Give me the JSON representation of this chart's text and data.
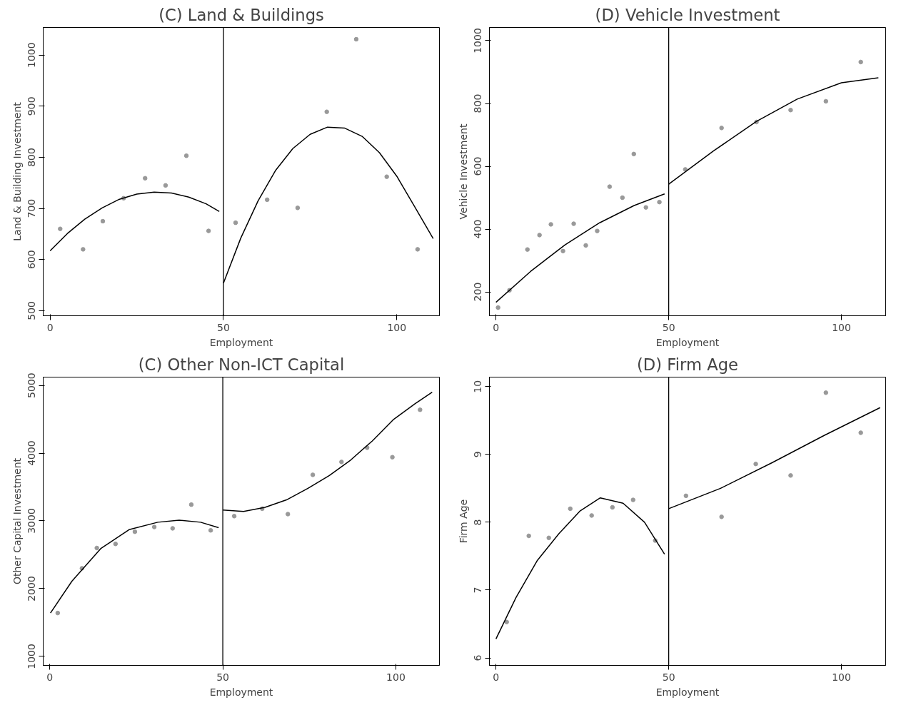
{
  "chart_data": [
    {
      "type": "scatter",
      "title": "(C) Land & Buildings",
      "xlabel": "Employment",
      "ylabel": "Land & Building Investment",
      "xlim": [
        -2,
        112.3
      ],
      "ylim": [
        490,
        1054
      ],
      "xticks": [
        0,
        50,
        100
      ],
      "yticks": [
        500,
        600,
        700,
        800,
        900,
        1000
      ],
      "grid": false,
      "ref_lines": [
        {
          "axis": "x",
          "value": 50,
          "color": "#000000"
        }
      ],
      "series": [
        {
          "marker": "circle",
          "color": "#999999",
          "x": [
            2.9,
            9.5,
            15.2,
            21.2,
            27.4,
            33.3,
            39.3,
            45.7,
            53.5,
            62.6,
            71.4,
            79.8,
            88.3,
            97.1,
            106.0
          ],
          "values": [
            660,
            620,
            675,
            720,
            759,
            745,
            803,
            656,
            672,
            717,
            701,
            889,
            1031,
            762,
            620
          ]
        },
        {
          "type": "line",
          "color": "#000000",
          "x": [
            0,
            5,
            10,
            15,
            20,
            25,
            30,
            35,
            40,
            45,
            48.8
          ],
          "values": [
            617,
            651,
            679,
            701,
            718,
            728,
            732,
            730,
            722,
            709,
            694
          ]
        },
        {
          "type": "line",
          "color": "#000000",
          "x": [
            50,
            55,
            60,
            65,
            70,
            75,
            80,
            85,
            90,
            95,
            100,
            105,
            110.5
          ],
          "values": [
            554,
            642,
            715,
            774,
            817,
            845,
            859,
            857,
            841,
            809,
            763,
            705,
            641
          ]
        }
      ]
    },
    {
      "type": "scatter",
      "title": "(D) Vehicle Investment",
      "xlabel": "Employment",
      "ylabel": "Vehicle Investment",
      "xlim": [
        -1.9,
        112.8
      ],
      "ylim": [
        124,
        1042
      ],
      "xticks": [
        0,
        50,
        100
      ],
      "yticks": [
        200,
        400,
        600,
        800,
        1000
      ],
      "grid": false,
      "ref_lines": [
        {
          "axis": "x",
          "value": 50,
          "color": "#000000"
        }
      ],
      "series": [
        {
          "marker": "circle",
          "color": "#999999",
          "x": [
            0.6,
            3.9,
            9.1,
            12.6,
            15.9,
            19.4,
            22.5,
            26.0,
            29.3,
            32.9,
            36.6,
            39.9,
            43.4,
            47.3,
            54.8,
            65.3,
            75.4,
            85.3,
            95.5,
            105.6
          ],
          "values": [
            150,
            205,
            335,
            381,
            415,
            330,
            417,
            348,
            394,
            535,
            500,
            639,
            469,
            486,
            590,
            722,
            741,
            779,
            807,
            932
          ]
        },
        {
          "type": "line",
          "color": "#000000",
          "x": [
            0,
            10,
            20,
            30,
            40,
            48.8
          ],
          "values": [
            167,
            265,
            350,
            420,
            475,
            512
          ]
        },
        {
          "type": "line",
          "color": "#000000",
          "x": [
            50,
            63,
            75.4,
            87.2,
            100,
            110.7
          ],
          "values": [
            543,
            649,
            743,
            814,
            866,
            882
          ]
        }
      ]
    },
    {
      "type": "scatter",
      "title": "(C) Other Non-ICT Capital",
      "xlabel": "Employment",
      "ylabel": "Other Capital Investment",
      "xlim": [
        -1.9,
        112.6
      ],
      "ylim": [
        867,
        5122
      ],
      "xticks": [
        0,
        50,
        100
      ],
      "yticks": [
        1000,
        2000,
        3000,
        4000,
        5000
      ],
      "grid": false,
      "ref_lines": [
        {
          "axis": "x",
          "value": 50,
          "color": "#000000"
        }
      ],
      "series": [
        {
          "marker": "circle",
          "color": "#999999",
          "x": [
            2.3,
            9.3,
            13.6,
            19.0,
            24.6,
            30.2,
            35.5,
            40.9,
            46.5,
            53.3,
            61.4,
            68.8,
            76.0,
            84.3,
            91.7,
            99.0,
            107.0
          ],
          "values": [
            1640,
            2300,
            2600,
            2660,
            2840,
            2910,
            2890,
            3240,
            2860,
            3070,
            3180,
            3100,
            3680,
            3870,
            4080,
            3940,
            4640
          ]
        },
        {
          "type": "line",
          "color": "#000000",
          "x": [
            0.2,
            6.4,
            14.7,
            22.9,
            31.2,
            37.4,
            43.6,
            48.8
          ],
          "values": [
            1640,
            2110,
            2590,
            2870,
            2980,
            3010,
            2980,
            2900
          ]
        },
        {
          "type": "line",
          "color": "#000000",
          "x": [
            50,
            56,
            62.2,
            68.4,
            74.6,
            80.8,
            87,
            93.2,
            99.4,
            105.6,
            110.5
          ],
          "values": [
            3160,
            3140,
            3200,
            3310,
            3480,
            3670,
            3900,
            4180,
            4500,
            4730,
            4900
          ]
        }
      ]
    },
    {
      "type": "scatter",
      "title": "(D) Firm Age",
      "xlabel": "Employment",
      "ylabel": "Firm Age",
      "xlim": [
        -1.9,
        112.8
      ],
      "ylim": [
        5.89,
        10.14
      ],
      "xticks": [
        0,
        50,
        100
      ],
      "yticks": [
        6,
        7,
        8,
        9,
        10
      ],
      "grid": false,
      "ref_lines": [
        {
          "axis": "x",
          "value": 50,
          "color": "#000000"
        }
      ],
      "series": [
        {
          "marker": "circle",
          "color": "#999999",
          "x": [
            3.1,
            9.5,
            15.3,
            21.5,
            27.7,
            33.7,
            39.7,
            46.1,
            55.0,
            65.3,
            75.2,
            85.3,
            95.5,
            105.6
          ],
          "values": [
            6.53,
            7.8,
            7.77,
            8.2,
            8.1,
            8.22,
            8.33,
            7.73,
            8.39,
            8.08,
            8.86,
            8.69,
            9.91,
            9.32
          ]
        },
        {
          "type": "line",
          "color": "#000000",
          "x": [
            0,
            5.8,
            12,
            18.2,
            24.4,
            30.2,
            36.8,
            43,
            48.8
          ],
          "values": [
            6.28,
            6.89,
            7.44,
            7.83,
            8.17,
            8.36,
            8.28,
            8.0,
            7.53
          ]
        },
        {
          "type": "line",
          "color": "#000000",
          "x": [
            50,
            65,
            80,
            95,
            111.2
          ],
          "values": [
            8.2,
            8.5,
            8.88,
            9.28,
            9.69
          ]
        }
      ]
    }
  ]
}
